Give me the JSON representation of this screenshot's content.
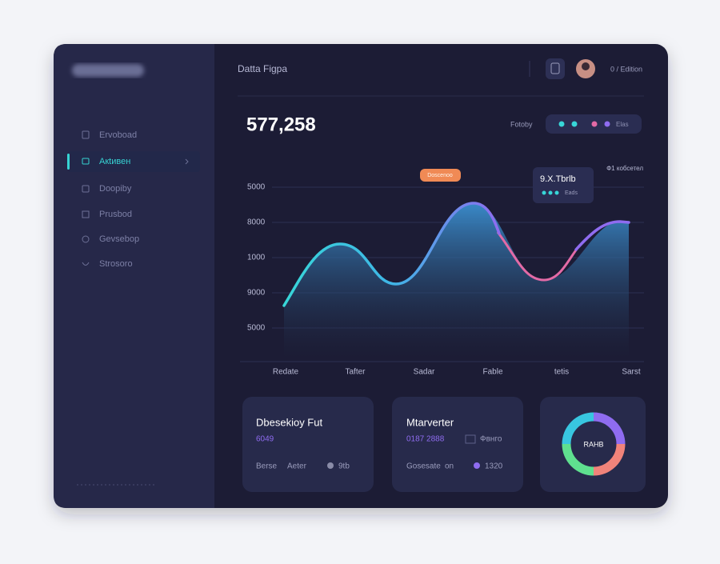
{
  "sidebar": {
    "items": [
      "Ervoboad",
      "Aкtивен",
      "Doopiby",
      "Prusbod",
      "Gevsebop",
      "Strosoro"
    ]
  },
  "header": {
    "title": "Datta Figpa",
    "user": "0 / Edition"
  },
  "summary": {
    "total": "577,258",
    "legend_label": "Fotoby",
    "legend_text": "Elas"
  },
  "chart": {
    "y_labels": [
      "5000",
      "8000",
      "1000",
      "9000",
      "5000"
    ],
    "x_labels": [
      "Redate",
      "Tafter",
      "Sadar",
      "Fable",
      "tetis",
      "Sarst"
    ],
    "badge": "Doscenoo",
    "tooltip": {
      "title": "9.X.Tbrlb",
      "text": "Eads"
    },
    "note": "Ф1 кобсетел"
  },
  "cards": [
    {
      "title": "Dbesekioy Fut",
      "value": "6049",
      "foot": [
        "Berse",
        "Aeter",
        "9tb"
      ]
    },
    {
      "title": "Mtarverter",
      "value": "0187  2888",
      "extra": "Фвнго",
      "foot": [
        "Gosesate",
        "on",
        "1320"
      ]
    }
  ],
  "donut": {
    "label": "RAHB"
  }
}
